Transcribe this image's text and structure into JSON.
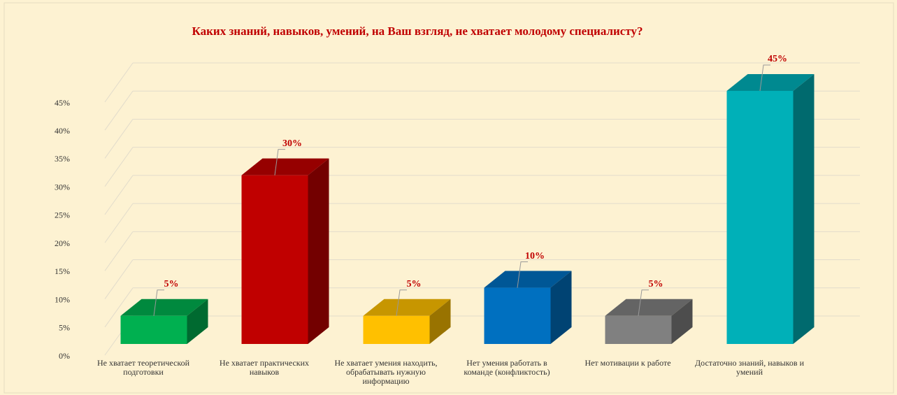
{
  "chart_data": {
    "type": "bar3d",
    "title": "Каких знаний, навыков, умений, на Ваш взгляд, не хватает молодому специалисту?",
    "categories": [
      "Не хватает теоретической подготовки",
      "Не хватает практических навыков",
      "Не хватает умения находить, обрабатывать нужную информацию",
      "Нет умения работать в команде (конфликтость)",
      "Нет мотивации к работе",
      "Достаточно знаний, навыков и умений"
    ],
    "values": [
      5,
      30,
      5,
      10,
      5,
      45
    ],
    "value_labels": [
      "5%",
      "30%",
      "5%",
      "10%",
      "5%",
      "45%"
    ],
    "colors": [
      "#00b050",
      "#c00000",
      "#ffc000",
      "#0070c0",
      "#808080",
      "#00b0b8"
    ],
    "ylim": [
      0,
      45
    ],
    "yticks": [
      {
        "value": 0,
        "label": "0%"
      },
      {
        "value": 5,
        "label": "5%"
      },
      {
        "value": 10,
        "label": "10%"
      },
      {
        "value": 15,
        "label": "15%"
      },
      {
        "value": 20,
        "label": "20%"
      },
      {
        "value": 25,
        "label": "25%"
      },
      {
        "value": 30,
        "label": "30%"
      },
      {
        "value": 35,
        "label": "35%"
      },
      {
        "value": 40,
        "label": "40%"
      },
      {
        "value": 45,
        "label": "45%"
      }
    ],
    "grid": true
  }
}
